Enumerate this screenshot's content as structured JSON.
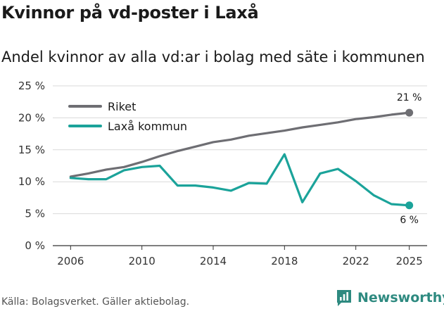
{
  "title": "Kvinnor på vd-poster i Laxå",
  "subtitle": "Andel kvinnor av alla vd:ar i bolag med säte i kommunen",
  "source": "Källa: Bolagsverket. Gäller aktiebolag.",
  "brand": {
    "name": "Newsworthy",
    "icon": "newsworthy-logo-icon",
    "color": "#2e8a80"
  },
  "chart_data": {
    "type": "line",
    "title": "Kvinnor på vd-poster i Laxå",
    "subtitle": "Andel kvinnor av alla vd:ar i bolag med säte i kommunen",
    "xlabel": "",
    "ylabel": "",
    "x": [
      2006,
      2007,
      2008,
      2009,
      2010,
      2011,
      2012,
      2013,
      2014,
      2015,
      2016,
      2017,
      2018,
      2019,
      2020,
      2021,
      2022,
      2023,
      2024,
      2025
    ],
    "xlim": [
      2005,
      2026
    ],
    "ylim": [
      0,
      25
    ],
    "x_ticks": [
      2006,
      2010,
      2014,
      2018,
      2022,
      2025
    ],
    "x_tick_labels": [
      "2006",
      "2010",
      "2014",
      "2018",
      "2022",
      "2025"
    ],
    "y_ticks": [
      0,
      5,
      10,
      15,
      20,
      25
    ],
    "y_tick_labels": [
      "0 %",
      "5 %",
      "10 %",
      "15 %",
      "20 %",
      "25 %"
    ],
    "grid": true,
    "legend_position": "top-left",
    "series": [
      {
        "name": "Riket",
        "color": "#6e6e73",
        "values": [
          10.8,
          11.3,
          11.9,
          12.3,
          13.1,
          14.0,
          14.8,
          15.5,
          16.2,
          16.6,
          17.2,
          17.6,
          18.0,
          18.5,
          18.9,
          19.3,
          19.8,
          20.1,
          20.5,
          20.8
        ],
        "end_label": "21 %"
      },
      {
        "name": "Laxå kommun",
        "color": "#1ba39a",
        "values": [
          10.6,
          10.4,
          10.4,
          11.8,
          12.3,
          12.5,
          9.4,
          9.4,
          9.1,
          8.6,
          9.8,
          9.7,
          14.3,
          6.8,
          11.3,
          12.0,
          10.1,
          7.9,
          6.5,
          6.3
        ],
        "end_label": "6 %"
      }
    ]
  }
}
